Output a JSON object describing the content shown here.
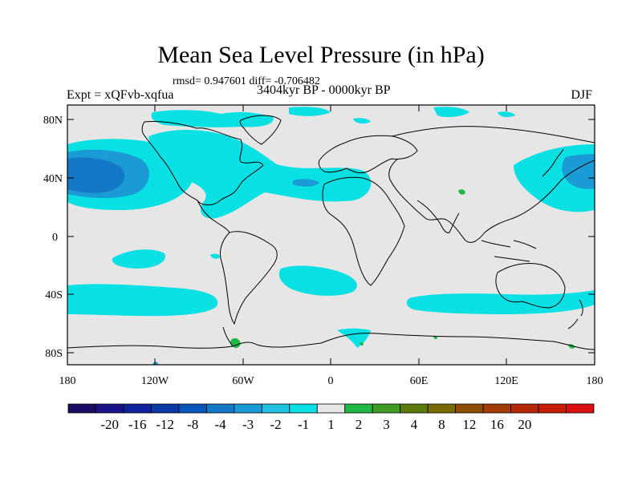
{
  "title": "Mean Sea Level Pressure (in hPa)",
  "stats": "rmsd= 0.947601 diff= -0.706482",
  "experiment": "Expt = xQFvb-xqfua",
  "period": "3404kyr BP - 0000kyr BP",
  "season": "DJF",
  "axes": {
    "lat_labels": [
      "80N",
      "40N",
      "0",
      "40S",
      "80S"
    ],
    "lon_labels": [
      "180",
      "120W",
      "60W",
      "0",
      "60E",
      "120E",
      "180"
    ]
  },
  "colorbar": {
    "labels": [
      "-20",
      "-16",
      "-12",
      "-8",
      "-4",
      "-3",
      "-2",
      "-1",
      "1",
      "2",
      "3",
      "4",
      "8",
      "12",
      "16",
      "20"
    ],
    "colors": [
      "#1b0a63",
      "#1a1289",
      "#10229b",
      "#0a3aa8",
      "#0a56b8",
      "#1478c8",
      "#1a9bd6",
      "#21c2e2",
      "#08e0e4",
      "#e6e6e6",
      "#1fb845",
      "#3f9b22",
      "#5d7a0c",
      "#7a6a06",
      "#8f4d05",
      "#a43b05",
      "#b52a05",
      "#c81e05",
      "#dc1010"
    ]
  },
  "map_colors": {
    "background": "#e6e6e6",
    "cyan": "#08e0e4",
    "light_blue": "#1a9bd6",
    "mid_blue": "#1478c8",
    "green": "#1fb845",
    "coast": "#000000"
  }
}
